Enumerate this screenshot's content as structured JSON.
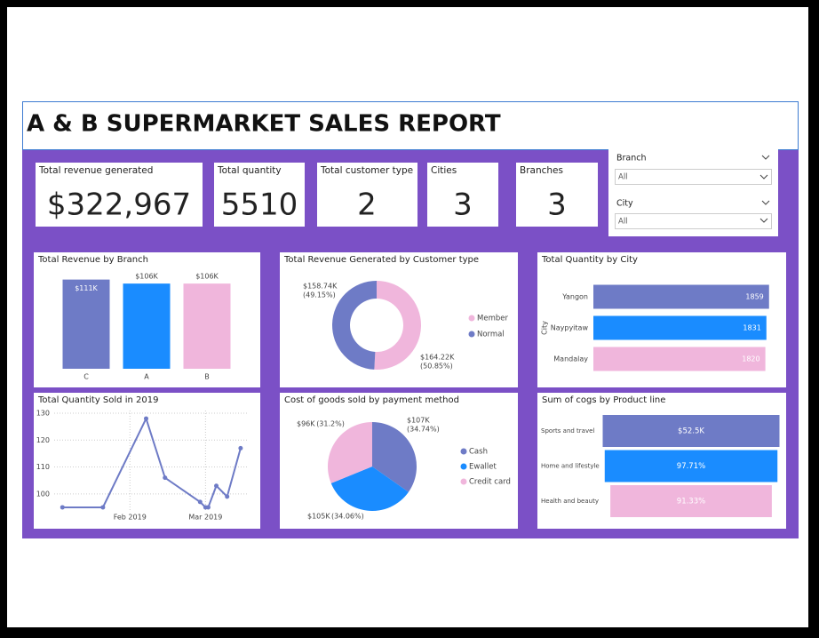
{
  "header": {
    "title": "A & B SUPERMARKET SALES REPORT"
  },
  "cards": [
    {
      "label": "Total revenue generated",
      "value": "$322,967"
    },
    {
      "label": "Total quantity",
      "value": "5510"
    },
    {
      "label": "Total customer type",
      "value": "2"
    },
    {
      "label": "Cities",
      "value": "3"
    },
    {
      "label": "Branches",
      "value": "3"
    }
  ],
  "slicers": [
    {
      "label": "Branch",
      "selection": "All"
    },
    {
      "label": "City",
      "selection": "All"
    }
  ],
  "chart_data": [
    {
      "type": "bar",
      "title": "Total Revenue by Branch",
      "categories": [
        "C",
        "A",
        "B"
      ],
      "values": [
        111000,
        106000,
        106000
      ],
      "value_labels": [
        "$111K",
        "$106K",
        "$106K"
      ],
      "colors": [
        "#6e7bc6",
        "#1a8cff",
        "#f0b6dc"
      ],
      "ylim": [
        0,
        115000
      ]
    },
    {
      "type": "donut",
      "title": "Total Revenue Generated by Customer type",
      "categories": [
        "Member",
        "Normal"
      ],
      "values": [
        164220,
        158740
      ],
      "value_labels": [
        "$164.22K",
        "$158.74K"
      ],
      "share_labels": [
        "(50.85%)",
        "(49.15%)"
      ],
      "colors": [
        "#f0b6dc",
        "#6e7bc6"
      ],
      "legend": "right"
    },
    {
      "type": "hbar",
      "title": "Total Quantity by City",
      "y_label": "City",
      "categories": [
        "Yangon",
        "Naypyitaw",
        "Mandalay"
      ],
      "values": [
        1859,
        1831,
        1820
      ],
      "colors": [
        "#6e7bc6",
        "#1a8cff",
        "#f0b6dc"
      ],
      "xlim": [
        0,
        1880
      ]
    },
    {
      "type": "line",
      "title": "Total Quantity Sold in 2019",
      "x": [
        7,
        22,
        38,
        45,
        58,
        60,
        61,
        64,
        68,
        73
      ],
      "values": [
        95,
        95,
        128,
        106,
        97,
        95,
        95,
        103,
        99,
        117
      ],
      "xlim": [
        0,
        76
      ],
      "xticks": [
        {
          "value": 32,
          "label": "Feb 2019"
        },
        {
          "value": 60,
          "label": "Mar 2019"
        }
      ],
      "ylim": [
        93,
        131
      ],
      "yticks": [
        100,
        110,
        120,
        130
      ],
      "color": "#6e7bc6",
      "grid": true
    },
    {
      "type": "pie",
      "title": "Cost of goods sold by payment method",
      "categories": [
        "Cash",
        "Ewallet",
        "Credit card"
      ],
      "values": [
        107000,
        105000,
        96000
      ],
      "value_labels": [
        "$107K",
        "$105K",
        "$96K"
      ],
      "share_labels": [
        "(34.74%)",
        "(34.06%)",
        "(31.2%)"
      ],
      "colors": [
        "#6e7bc6",
        "#1a8cff",
        "#f0b6dc"
      ],
      "legend": "right"
    },
    {
      "type": "funnel",
      "title": "Sum of cogs by Product line",
      "categories": [
        "Sports and travel",
        "Home and lifestyle",
        "Health and beauty"
      ],
      "values": [
        52500,
        51300,
        47950
      ],
      "value_labels": [
        "$52.5K",
        "97.71%",
        "91.33%"
      ],
      "colors": [
        "#6e7bc6",
        "#1a8cff",
        "#f0b6dc"
      ]
    }
  ]
}
